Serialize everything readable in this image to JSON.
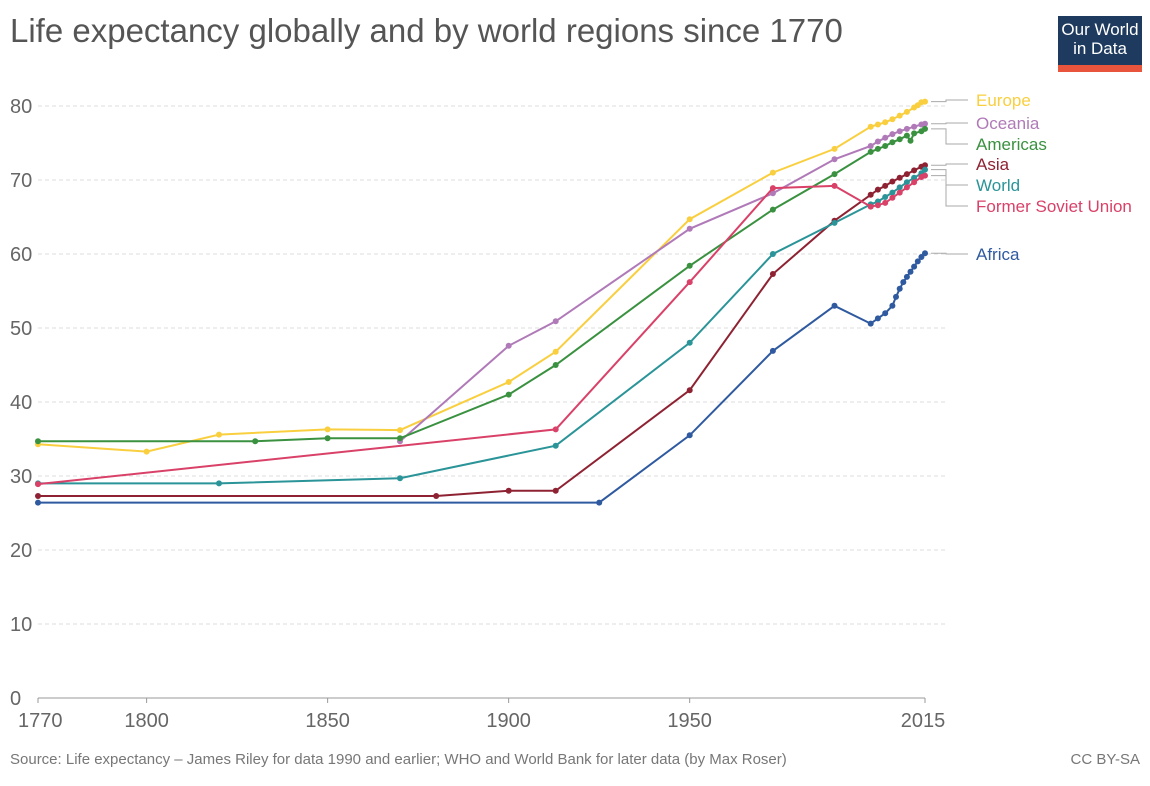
{
  "title": "Life expectancy globally and by world regions since 1770",
  "logo": {
    "line1": "Our World",
    "line2": "in Data",
    "bg": "#1e3a5f",
    "accent": "#e8543c"
  },
  "footer": {
    "source": "Source: Life expectancy – James Riley for data 1990 and earlier; WHO and World Bank for later data (by Max Roser)",
    "license": "CC BY-SA"
  },
  "chart_data": {
    "type": "line",
    "title": "Life expectancy globally and by world regions since 1770",
    "xlabel": "",
    "ylabel": "",
    "xlim": [
      1770,
      2015
    ],
    "ylim": [
      0,
      80
    ],
    "x_ticks": [
      "1770",
      "1800",
      "1850",
      "1900",
      "1950",
      "2015"
    ],
    "y_ticks": [
      "0",
      "10",
      "20",
      "30",
      "40",
      "50",
      "60",
      "70",
      "80"
    ],
    "grid": true,
    "legend": "right-end labels",
    "series": [
      {
        "name": "Europe",
        "color": "#f9cf3f",
        "points": [
          [
            1770,
            34.3
          ],
          [
            1800,
            33.3
          ],
          [
            1820,
            35.6
          ],
          [
            1850,
            36.3
          ],
          [
            1870,
            36.2
          ],
          [
            1900,
            42.7
          ],
          [
            1913,
            46.8
          ],
          [
            1950,
            64.7
          ],
          [
            1973,
            71
          ],
          [
            1990,
            74.2
          ],
          [
            2000,
            77.2
          ],
          [
            2002,
            77.5
          ],
          [
            2004,
            77.8
          ],
          [
            2006,
            78.2
          ],
          [
            2008,
            78.7
          ],
          [
            2010,
            79.2
          ],
          [
            2012,
            79.8
          ],
          [
            2013,
            80.1
          ],
          [
            2014,
            80.5
          ],
          [
            2015,
            80.6
          ]
        ]
      },
      {
        "name": "Oceania",
        "color": "#b07ab8",
        "points": [
          [
            1870,
            34.7
          ],
          [
            1900,
            47.6
          ],
          [
            1913,
            50.9
          ],
          [
            1950,
            63.4
          ],
          [
            1973,
            68.2
          ],
          [
            1990,
            72.8
          ],
          [
            2000,
            74.6
          ],
          [
            2002,
            75.2
          ],
          [
            2004,
            75.7
          ],
          [
            2006,
            76.2
          ],
          [
            2008,
            76.6
          ],
          [
            2010,
            76.9
          ],
          [
            2012,
            77.2
          ],
          [
            2014,
            77.5
          ],
          [
            2015,
            77.6
          ]
        ]
      },
      {
        "name": "Americas",
        "color": "#3a9140",
        "points": [
          [
            1770,
            34.7
          ],
          [
            1830,
            34.7
          ],
          [
            1850,
            35.1
          ],
          [
            1870,
            35.1
          ],
          [
            1900,
            41.0
          ],
          [
            1913,
            45.0
          ],
          [
            1950,
            58.4
          ],
          [
            1973,
            66.0
          ],
          [
            1990,
            70.8
          ],
          [
            2000,
            73.8
          ],
          [
            2002,
            74.2
          ],
          [
            2004,
            74.6
          ],
          [
            2006,
            75.1
          ],
          [
            2008,
            75.5
          ],
          [
            2010,
            76.0
          ],
          [
            2011,
            75.3
          ],
          [
            2012,
            76.3
          ],
          [
            2014,
            76.6
          ],
          [
            2015,
            76.9
          ]
        ]
      },
      {
        "name": "Asia",
        "color": "#8e2232",
        "points": [
          [
            1770,
            27.3
          ],
          [
            1880,
            27.3
          ],
          [
            1900,
            28.0
          ],
          [
            1913,
            28.0
          ],
          [
            1950,
            41.6
          ],
          [
            1973,
            57.3
          ],
          [
            1990,
            64.5
          ],
          [
            2000,
            68.0
          ],
          [
            2002,
            68.7
          ],
          [
            2004,
            69.2
          ],
          [
            2006,
            69.8
          ],
          [
            2008,
            70.3
          ],
          [
            2010,
            70.8
          ],
          [
            2012,
            71.3
          ],
          [
            2014,
            71.8
          ],
          [
            2015,
            72.0
          ]
        ]
      },
      {
        "name": "World",
        "color": "#2a9498",
        "points": [
          [
            1770,
            29.0
          ],
          [
            1820,
            29.0
          ],
          [
            1870,
            29.7
          ],
          [
            1913,
            34.1
          ],
          [
            1950,
            48.0
          ],
          [
            1973,
            60.0
          ],
          [
            1990,
            64.2
          ],
          [
            2000,
            66.7
          ],
          [
            2002,
            67.1
          ],
          [
            2004,
            67.7
          ],
          [
            2006,
            68.3
          ],
          [
            2008,
            69.0
          ],
          [
            2010,
            69.7
          ],
          [
            2012,
            70.3
          ],
          [
            2014,
            70.9
          ],
          [
            2015,
            71.4
          ]
        ]
      },
      {
        "name": "Former Soviet Union",
        "color": "#d94168",
        "points": [
          [
            1770,
            28.9
          ],
          [
            1913,
            36.3
          ],
          [
            1950,
            56.2
          ],
          [
            1973,
            68.9
          ],
          [
            1990,
            69.2
          ],
          [
            2000,
            66.4
          ],
          [
            2002,
            66.6
          ],
          [
            2004,
            66.9
          ],
          [
            2006,
            67.6
          ],
          [
            2008,
            68.3
          ],
          [
            2010,
            69.0
          ],
          [
            2012,
            69.7
          ],
          [
            2014,
            70.4
          ],
          [
            2015,
            70.6
          ]
        ]
      },
      {
        "name": "Africa",
        "color": "#2f5aa0",
        "points": [
          [
            1770,
            26.4
          ],
          [
            1925,
            26.4
          ],
          [
            1950,
            35.5
          ],
          [
            1973,
            46.9
          ],
          [
            1990,
            53.0
          ],
          [
            2000,
            50.6
          ],
          [
            2002,
            51.3
          ],
          [
            2004,
            52.0
          ],
          [
            2006,
            53.0
          ],
          [
            2007,
            54.2
          ],
          [
            2008,
            55.3
          ],
          [
            2009,
            56.2
          ],
          [
            2010,
            56.9
          ],
          [
            2011,
            57.6
          ],
          [
            2012,
            58.3
          ],
          [
            2013,
            59.0
          ],
          [
            2014,
            59.6
          ],
          [
            2015,
            60.1
          ]
        ]
      }
    ]
  }
}
